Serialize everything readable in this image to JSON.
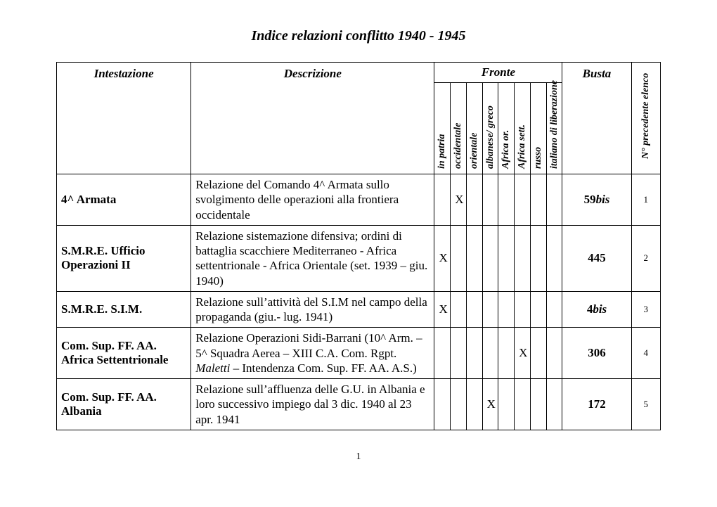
{
  "title": "Indice  relazioni conflitto  1940 - 1945",
  "headers": {
    "intestazione": "Intestazione",
    "descrizione": "Descrizione",
    "fronte": "Fronte",
    "busta": "Busta",
    "precedente": "N° precedente elenco",
    "fronte_cols": [
      "in patria",
      "occidentale",
      "orientale",
      "albanese/ greco",
      "Africa or.",
      "Africa sett.",
      "russo",
      "italiano di liberazione"
    ]
  },
  "rows": [
    {
      "intestazione": "4^ Armata",
      "descrizione": "Relazione del Comando 4^ Armata sullo svolgimento delle operazioni alla frontiera occidentale",
      "marks": [
        "",
        "X",
        "",
        "",
        "",
        "",
        "",
        ""
      ],
      "busta": "59",
      "busta_suffix": "bis",
      "prec": "1"
    },
    {
      "intestazione": "S.M.R.E.  Ufficio Operazioni II",
      "descrizione": "Relazione sistemazione difensiva; ordini di battaglia scacchiere Mediterraneo - Africa settentrionale - Africa Orientale (set. 1939 – giu. 1940)",
      "marks": [
        "X",
        "",
        "",
        "",
        "",
        "",
        "",
        ""
      ],
      "busta": "445",
      "busta_suffix": "",
      "prec": "2"
    },
    {
      "intestazione": "S.M.R.E.  S.I.M.",
      "descrizione": "Relazione sull’attività del S.I.M nel campo della propaganda  (giu.- lug. 1941)",
      "marks": [
        "X",
        "",
        "",
        "",
        "",
        "",
        "",
        ""
      ],
      "busta": "4",
      "busta_suffix": "bis",
      "prec": "3"
    },
    {
      "intestazione": "Com. Sup. FF. AA. Africa Settentrionale",
      "descrizione_html": "Relazione Operazioni Sidi-Barrani (10^ Arm. – 5^ Squadra Aerea – XIII C.A. Com. Rgpt. <i>Maletti</i>  – Intendenza Com. Sup. FF. AA. A.S.)",
      "marks": [
        "",
        "",
        "",
        "",
        "",
        "X",
        "",
        ""
      ],
      "busta": "306",
      "busta_suffix": "",
      "prec": "4"
    },
    {
      "intestazione": "Com. Sup. FF. AA. Albania",
      "descrizione": "Relazione sull’affluenza delle G.U. in Albania e loro successivo impiego dal 3 dic. 1940 al 23 apr. 1941",
      "marks": [
        "",
        "",
        "",
        "X",
        "",
        "",
        "",
        ""
      ],
      "busta": "172",
      "busta_suffix": "",
      "prec": "5"
    }
  ],
  "page_number": "1",
  "style": {
    "background_color": "#ffffff",
    "border_color": "#000000",
    "title_fontsize": 20,
    "header_fontsize": 17,
    "vertical_header_fontsize": 14,
    "body_fontsize": 17,
    "prec_fontsize": 13
  }
}
